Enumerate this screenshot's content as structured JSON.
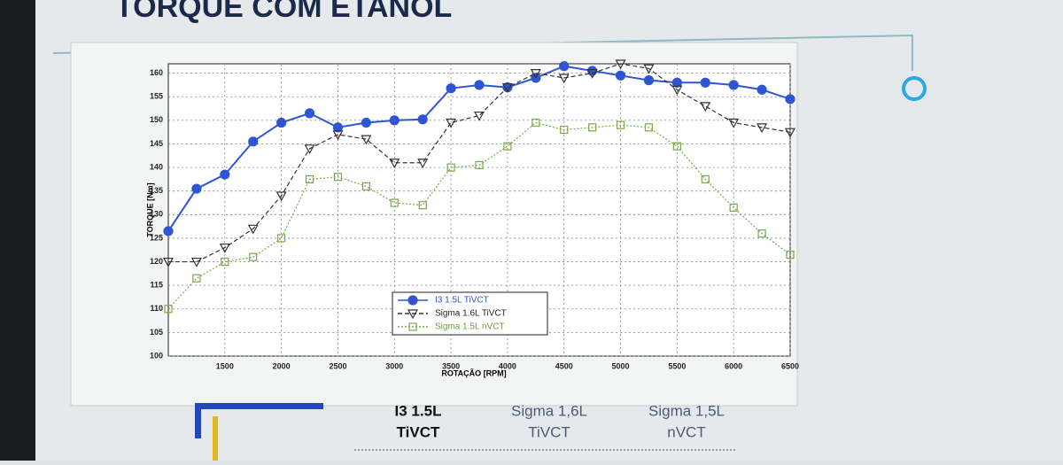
{
  "chart_data": {
    "type": "line",
    "title": "TORQUE COM ETANOL",
    "x_label": "ROTAÇÃO [RPM]",
    "y_label": "TORQUE [Nm]",
    "x": [
      1000,
      1250,
      1500,
      1750,
      2000,
      2250,
      2500,
      2750,
      3000,
      3250,
      3500,
      3750,
      4000,
      4250,
      4500,
      4750,
      5000,
      5250,
      5500,
      5750,
      6000,
      6250,
      6500
    ],
    "series": [
      {
        "name": "I3 1.5L TiVCT",
        "color": "#2f55d4",
        "dash": "solid",
        "marker": "circle",
        "values": [
          126.5,
          135.5,
          138.5,
          145.5,
          149.5,
          151.5,
          148.5,
          149.5,
          150,
          150.2,
          156.8,
          157.5,
          157,
          159,
          161.5,
          160.5,
          159.5,
          158.5,
          158,
          158,
          157.5,
          156.5,
          154.5
        ]
      },
      {
        "name": "Sigma 1.6L TiVCT",
        "color": "#333333",
        "dash": "dashed",
        "marker": "triangle-down",
        "values": [
          120,
          120,
          123,
          127,
          134,
          144,
          147,
          146,
          141,
          141,
          149.5,
          151,
          157,
          160,
          159,
          160,
          162,
          161,
          156.5,
          153,
          149.5,
          148.5,
          147.5
        ]
      },
      {
        "name": "Sigma 1.5L nVCT",
        "color": "#7aa84a",
        "dash": "dotted",
        "marker": "square",
        "values": [
          110,
          116.5,
          120,
          121,
          125,
          137.5,
          138,
          136,
          132.5,
          132,
          140,
          140.5,
          144.5,
          149.5,
          148,
          148.5,
          149,
          148.5,
          144.5,
          137.5,
          131.5,
          126,
          121.5
        ]
      }
    ],
    "xlim": [
      1000,
      6500
    ],
    "xticks": [
      1500,
      2000,
      2500,
      3000,
      3500,
      4000,
      4500,
      5000,
      5500,
      6000,
      6500
    ],
    "ylim": [
      100,
      162
    ],
    "yticks": [
      100,
      105,
      110,
      115,
      120,
      125,
      130,
      135,
      140,
      145,
      150,
      155,
      160
    ],
    "grid": true,
    "legend": "bottom-center"
  },
  "comparison_header": [
    [
      "I3 1.5L",
      "TiVCT"
    ],
    [
      "Sigma 1,6L",
      "TiVCT"
    ],
    [
      "Sigma 1,5L",
      "nVCT"
    ]
  ]
}
